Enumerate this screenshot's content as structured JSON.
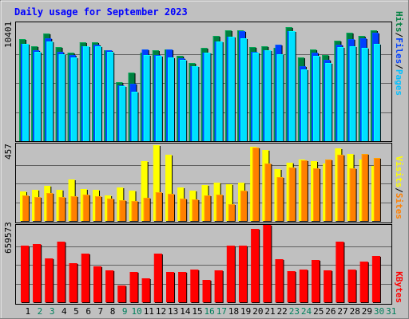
{
  "title": "Daily usage for September 2023",
  "colors": {
    "hits": "#008040",
    "files": "#0040ff",
    "pages": "#00e0ff",
    "visits": "#ffff00",
    "sites": "#ff8000",
    "kbytes": "#ff0000",
    "weekend": "#00805c",
    "weekday": "#000000",
    "title": "#0000ff",
    "panel": "#c0c0c0"
  },
  "legend": {
    "top": [
      {
        "text": "Hits",
        "color": "#008040"
      },
      {
        "text": "/",
        "color": "#000000"
      },
      {
        "text": "Files",
        "color": "#0040ff"
      },
      {
        "text": "/",
        "color": "#000000"
      },
      {
        "text": "Pages",
        "color": "#00c0ff"
      }
    ],
    "middle": [
      {
        "text": "Visits",
        "color": "#ffff00"
      },
      {
        "text": "/",
        "color": "#000000"
      },
      {
        "text": "Sites",
        "color": "#ff8000"
      }
    ],
    "bottom": [
      {
        "text": "KBytes",
        "color": "#ff0000"
      }
    ]
  },
  "chart_data": [
    {
      "type": "bar",
      "panel": "hits-files-pages",
      "categories": [
        "1",
        "2",
        "3",
        "4",
        "5",
        "6",
        "7",
        "8",
        "9",
        "10",
        "11",
        "12",
        "13",
        "14",
        "15",
        "16",
        "17",
        "18",
        "19",
        "20",
        "21",
        "22",
        "23",
        "24",
        "25",
        "26",
        "27",
        "28",
        "29",
        "30"
      ],
      "ymax_label": "10401",
      "ylim": [
        0,
        10401
      ],
      "series": [
        {
          "name": "Hits",
          "values": [
            9100,
            8500,
            9600,
            8400,
            7900,
            8800,
            8800,
            8100,
            5300,
            6100,
            7900,
            8100,
            8200,
            7600,
            7000,
            8300,
            9400,
            9900,
            9900,
            8400,
            8500,
            8300,
            10200,
            7500,
            8200,
            7700,
            9000,
            9700,
            9400,
            9900
          ]
        },
        {
          "name": "Files",
          "values": [
            8700,
            8100,
            9200,
            8000,
            7700,
            8500,
            8600,
            8100,
            5000,
            5100,
            8200,
            7700,
            8200,
            7400,
            6700,
            7900,
            8900,
            9300,
            9800,
            8000,
            8100,
            8600,
            9800,
            6700,
            7900,
            7300,
            8600,
            9100,
            9200,
            9700
          ]
        },
        {
          "name": "Pages",
          "values": [
            8700,
            8000,
            8900,
            7800,
            7500,
            8500,
            8500,
            8000,
            4900,
            4400,
            7700,
            7600,
            7500,
            7300,
            6700,
            7900,
            8900,
            9300,
            9200,
            7900,
            8100,
            7800,
            9800,
            6400,
            7600,
            7000,
            8400,
            8500,
            8300,
            8700
          ]
        }
      ]
    },
    {
      "type": "bar",
      "panel": "visits-sites",
      "categories": [
        "1",
        "2",
        "3",
        "4",
        "5",
        "6",
        "7",
        "8",
        "9",
        "10",
        "11",
        "12",
        "13",
        "14",
        "15",
        "16",
        "17",
        "18",
        "19",
        "20",
        "21",
        "22",
        "23",
        "24",
        "25",
        "26",
        "27",
        "28",
        "29",
        "30"
      ],
      "ymax_label": "457",
      "ylim": [
        0,
        457
      ],
      "series": [
        {
          "name": "Visits",
          "values": [
            180,
            190,
            215,
            190,
            255,
            195,
            190,
            155,
            205,
            185,
            365,
            460,
            405,
            205,
            185,
            220,
            235,
            225,
            235,
            450,
            435,
            315,
            355,
            375,
            365,
            350,
            440,
            410,
            375,
            335
          ]
        },
        {
          "name": "Sites",
          "values": [
            155,
            145,
            170,
            145,
            150,
            160,
            150,
            135,
            125,
            120,
            140,
            175,
            165,
            135,
            130,
            155,
            160,
            100,
            185,
            445,
            350,
            265,
            325,
            370,
            320,
            375,
            405,
            320,
            410,
            385
          ]
        }
      ]
    },
    {
      "type": "bar",
      "panel": "kbytes",
      "categories": [
        "1",
        "2",
        "3",
        "4",
        "5",
        "6",
        "7",
        "8",
        "9",
        "10",
        "11",
        "12",
        "13",
        "14",
        "15",
        "16",
        "17",
        "18",
        "19",
        "20",
        "21",
        "22",
        "23",
        "24",
        "25",
        "26",
        "27",
        "28",
        "29",
        "30"
      ],
      "ymax_label": "659573",
      "ylim": [
        0,
        659573
      ],
      "series": [
        {
          "name": "KBytes",
          "values": [
            495000,
            515000,
            385000,
            530000,
            345000,
            430000,
            315000,
            280000,
            150000,
            270000,
            209000,
            425000,
            270000,
            270000,
            285000,
            195000,
            280000,
            495000,
            495000,
            645000,
            685000,
            380000,
            275000,
            290000,
            375000,
            280000,
            530000,
            290000,
            360000,
            405000
          ]
        }
      ]
    }
  ],
  "weekend_days": [
    "2",
    "3",
    "9",
    "10",
    "16",
    "17",
    "23",
    "24",
    "30",
    "31"
  ],
  "day_labels": [
    "1",
    "2",
    "3",
    "4",
    "5",
    "6",
    "7",
    "8",
    "9",
    "10",
    "11",
    "12",
    "13",
    "14",
    "15",
    "16",
    "17",
    "18",
    "19",
    "20",
    "21",
    "22",
    "23",
    "24",
    "25",
    "26",
    "27",
    "28",
    "29",
    "30",
    "31"
  ]
}
